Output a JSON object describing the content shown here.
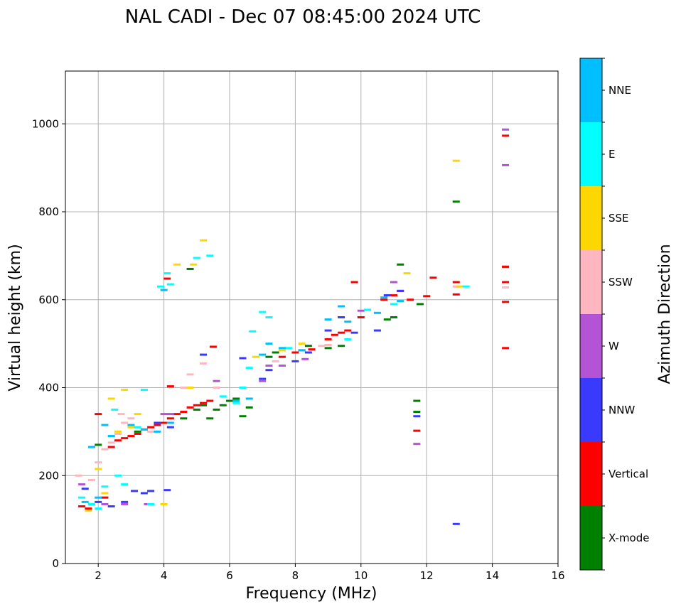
{
  "chart_data": {
    "type": "scatter",
    "title": "NAL CADI - Dec 07 08:45:00 2024 UTC",
    "xlabel": "Frequency (MHz)",
    "ylabel": "Virtual height (km)",
    "xlim": [
      1,
      16
    ],
    "ylim": [
      0,
      1120
    ],
    "xticks": [
      2,
      4,
      6,
      8,
      10,
      12,
      14,
      16
    ],
    "yticks": [
      0,
      200,
      400,
      600,
      800,
      1000
    ],
    "grid": true,
    "colorbar": {
      "title": "Azimuth Direction",
      "categories": [
        {
          "name": "X-mode",
          "color": "#008000"
        },
        {
          "name": "Vertical",
          "color": "#ff0000"
        },
        {
          "name": "NNW",
          "color": "#3a3aff"
        },
        {
          "name": "W",
          "color": "#b453d4"
        },
        {
          "name": "SSW",
          "color": "#ffb6c1"
        },
        {
          "name": "SSE",
          "color": "#ffd700"
        },
        {
          "name": "E",
          "color": "#00ffff"
        },
        {
          "name": "NNE",
          "color": "#00bfff"
        }
      ]
    },
    "series": [
      {
        "name": "X-mode",
        "points": [
          [
            5.6,
            350
          ],
          [
            5.8,
            360
          ],
          [
            6.0,
            370
          ],
          [
            6.2,
            375
          ],
          [
            6.4,
            335
          ],
          [
            6.6,
            355
          ],
          [
            7.2,
            470
          ],
          [
            7.4,
            480
          ],
          [
            8.4,
            495
          ],
          [
            9.0,
            490
          ],
          [
            9.4,
            495
          ],
          [
            10.8,
            555
          ],
          [
            11.0,
            560
          ],
          [
            11.2,
            680
          ],
          [
            11.8,
            590
          ],
          [
            11.7,
            370
          ],
          [
            11.7,
            345
          ],
          [
            12.9,
            823
          ],
          [
            14.4,
            675
          ],
          [
            4.8,
            670
          ],
          [
            5.2,
            360
          ],
          [
            5.0,
            350
          ],
          [
            5.4,
            330
          ],
          [
            4.6,
            330
          ],
          [
            3.2,
            300
          ],
          [
            2.0,
            270
          ]
        ]
      },
      {
        "name": "Vertical",
        "points": [
          [
            1.5,
            130
          ],
          [
            1.7,
            125
          ],
          [
            2.0,
            340
          ],
          [
            2.2,
            150
          ],
          [
            2.4,
            265
          ],
          [
            2.6,
            280
          ],
          [
            2.8,
            285
          ],
          [
            3.0,
            290
          ],
          [
            3.2,
            295
          ],
          [
            3.4,
            305
          ],
          [
            3.6,
            310
          ],
          [
            3.8,
            315
          ],
          [
            4.0,
            320
          ],
          [
            4.2,
            330
          ],
          [
            4.4,
            340
          ],
          [
            4.6,
            345
          ],
          [
            4.8,
            355
          ],
          [
            5.0,
            360
          ],
          [
            5.2,
            365
          ],
          [
            5.4,
            370
          ],
          [
            4.1,
            648
          ],
          [
            4.2,
            403
          ],
          [
            5.5,
            493
          ],
          [
            7.6,
            470
          ],
          [
            8.0,
            480
          ],
          [
            8.5,
            487
          ],
          [
            9.0,
            510
          ],
          [
            9.2,
            520
          ],
          [
            9.4,
            525
          ],
          [
            9.6,
            530
          ],
          [
            10.0,
            560
          ],
          [
            10.7,
            600
          ],
          [
            11.0,
            610
          ],
          [
            11.2,
            620
          ],
          [
            11.5,
            600
          ],
          [
            12.2,
            650
          ],
          [
            12.0,
            608
          ],
          [
            12.9,
            612
          ],
          [
            12.9,
            640
          ],
          [
            14.4,
            675
          ],
          [
            14.4,
            640
          ],
          [
            14.4,
            595
          ],
          [
            14.4,
            490
          ],
          [
            14.4,
            973
          ],
          [
            11.7,
            302
          ],
          [
            9.8,
            640
          ]
        ]
      },
      {
        "name": "NNW",
        "points": [
          [
            1.6,
            170
          ],
          [
            2.0,
            140
          ],
          [
            2.4,
            130
          ],
          [
            2.8,
            140
          ],
          [
            3.1,
            165
          ],
          [
            3.4,
            160
          ],
          [
            3.6,
            165
          ],
          [
            4.1,
            167
          ],
          [
            5.2,
            475
          ],
          [
            7.0,
            420
          ],
          [
            7.2,
            440
          ],
          [
            8.0,
            460
          ],
          [
            8.2,
            485
          ],
          [
            8.4,
            480
          ],
          [
            9.0,
            530
          ],
          [
            9.4,
            560
          ],
          [
            9.8,
            525
          ],
          [
            10.5,
            530
          ],
          [
            10.8,
            610
          ],
          [
            11.2,
            620
          ],
          [
            12.9,
            90
          ],
          [
            11.7,
            335
          ],
          [
            6.4,
            467
          ],
          [
            3.8,
            320
          ],
          [
            4.2,
            310
          ]
        ]
      },
      {
        "name": "W",
        "points": [
          [
            1.5,
            180
          ],
          [
            2.2,
            135
          ],
          [
            2.8,
            135
          ],
          [
            3.5,
            135
          ],
          [
            4.2,
            340
          ],
          [
            5.6,
            415
          ],
          [
            7.2,
            450
          ],
          [
            7.6,
            450
          ],
          [
            8.3,
            465
          ],
          [
            10.0,
            575
          ],
          [
            11.0,
            640
          ],
          [
            11.7,
            272
          ],
          [
            14.4,
            906
          ],
          [
            14.4,
            987
          ],
          [
            4.0,
            340
          ],
          [
            7.0,
            415
          ]
        ]
      },
      {
        "name": "SSW",
        "points": [
          [
            1.4,
            200
          ],
          [
            1.8,
            190
          ],
          [
            2.0,
            230
          ],
          [
            2.2,
            260
          ],
          [
            2.4,
            275
          ],
          [
            2.6,
            295
          ],
          [
            2.8,
            320
          ],
          [
            3.0,
            330
          ],
          [
            4.6,
            400
          ],
          [
            4.8,
            430
          ],
          [
            5.2,
            455
          ],
          [
            5.6,
            400
          ],
          [
            7.4,
            460
          ],
          [
            8.8,
            495
          ],
          [
            9.0,
            497
          ],
          [
            12.9,
            630
          ],
          [
            14.4,
            628
          ],
          [
            3.6,
            300
          ],
          [
            2.7,
            340
          ]
        ]
      },
      {
        "name": "SSE",
        "points": [
          [
            1.7,
            120
          ],
          [
            2.2,
            160
          ],
          [
            2.4,
            375
          ],
          [
            2.6,
            300
          ],
          [
            2.8,
            395
          ],
          [
            3.2,
            340
          ],
          [
            4.0,
            135
          ],
          [
            4.4,
            680
          ],
          [
            4.9,
            680
          ],
          [
            5.2,
            735
          ],
          [
            4.8,
            400
          ],
          [
            6.8,
            470
          ],
          [
            7.6,
            485
          ],
          [
            8.2,
            500
          ],
          [
            11.4,
            660
          ],
          [
            12.9,
            916
          ],
          [
            13.0,
            630
          ],
          [
            2.0,
            215
          ],
          [
            3.0,
            310
          ]
        ]
      },
      {
        "name": "E",
        "points": [
          [
            1.5,
            150
          ],
          [
            1.8,
            135
          ],
          [
            2.0,
            125
          ],
          [
            2.2,
            175
          ],
          [
            2.6,
            200
          ],
          [
            2.8,
            180
          ],
          [
            3.2,
            310
          ],
          [
            3.6,
            135
          ],
          [
            3.9,
            630
          ],
          [
            4.1,
            660
          ],
          [
            4.2,
            635
          ],
          [
            5.0,
            695
          ],
          [
            5.4,
            700
          ],
          [
            5.8,
            380
          ],
          [
            6.2,
            365
          ],
          [
            6.4,
            400
          ],
          [
            6.6,
            445
          ],
          [
            6.7,
            528
          ],
          [
            7.0,
            572
          ],
          [
            7.2,
            560
          ],
          [
            7.8,
            490
          ],
          [
            9.6,
            510
          ],
          [
            10.2,
            577
          ],
          [
            11.0,
            590
          ],
          [
            13.2,
            630
          ],
          [
            3.4,
            395
          ],
          [
            2.5,
            350
          ]
        ]
      },
      {
        "name": "NNE",
        "points": [
          [
            1.6,
            140
          ],
          [
            1.8,
            265
          ],
          [
            2.0,
            150
          ],
          [
            2.4,
            290
          ],
          [
            3.0,
            315
          ],
          [
            3.4,
            305
          ],
          [
            4.0,
            622
          ],
          [
            4.2,
            320
          ],
          [
            6.2,
            370
          ],
          [
            6.6,
            375
          ],
          [
            7.0,
            475
          ],
          [
            7.2,
            500
          ],
          [
            7.6,
            490
          ],
          [
            8.2,
            485
          ],
          [
            9.0,
            555
          ],
          [
            9.4,
            585
          ],
          [
            9.6,
            550
          ],
          [
            10.5,
            570
          ],
          [
            10.7,
            605
          ],
          [
            11.2,
            597
          ],
          [
            2.2,
            315
          ],
          [
            3.8,
            300
          ]
        ]
      }
    ]
  }
}
